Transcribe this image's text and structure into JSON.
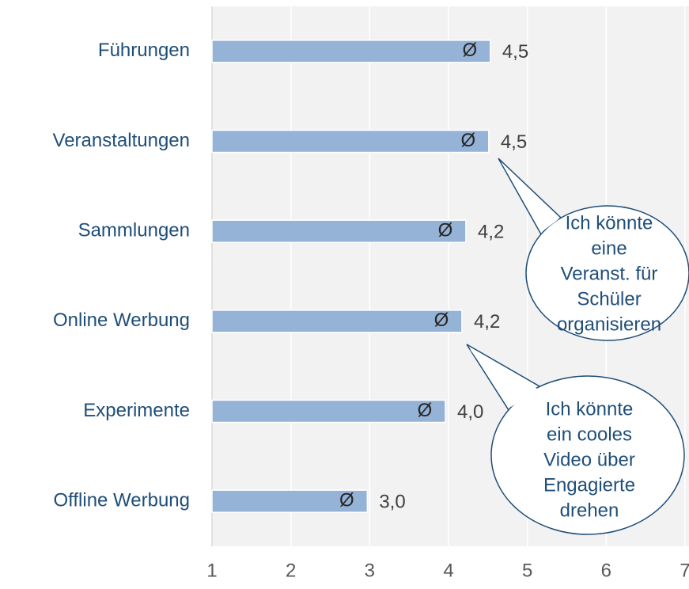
{
  "chart_data": {
    "type": "barh",
    "categories": [
      "Führungen",
      "Veranstaltungen",
      "Sammlungen",
      "Online Werbung",
      "Experimente",
      "Offline Werbung"
    ],
    "values": [
      4.53,
      4.51,
      4.22,
      4.17,
      3.96,
      2.97
    ],
    "value_labels": [
      "4,5",
      "4,5",
      "4,2",
      "4,2",
      "4,0",
      "3,0"
    ],
    "marker": "Ø",
    "color": "#95b3d7",
    "xlim": [
      1,
      7
    ],
    "xticks": [
      1,
      2,
      3,
      4,
      5,
      6,
      7
    ],
    "grid": true,
    "annotations": [
      {
        "lines": [
          "Ich könnte",
          "eine",
          "Veranst. für",
          "Schüler",
          "organisieren"
        ]
      },
      {
        "lines": [
          "Ich könnte",
          "ein cooles",
          "Video über",
          "Engagierte",
          "drehen"
        ]
      }
    ]
  }
}
